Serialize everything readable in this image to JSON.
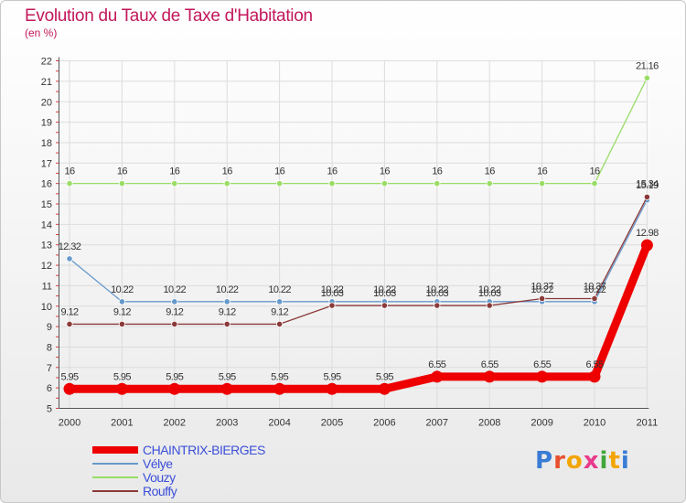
{
  "chart_data": {
    "type": "line",
    "title": "Evolution du Taux de Taxe d'Habitation",
    "subtitle": "(en %)",
    "x": [
      "2000",
      "2001",
      "2002",
      "2003",
      "2004",
      "2005",
      "2006",
      "2007",
      "2008",
      "2009",
      "2010",
      "2011"
    ],
    "ylim": [
      5,
      22
    ],
    "yticks": [
      5,
      6,
      7,
      8,
      9,
      10,
      11,
      12,
      13,
      14,
      15,
      16,
      17,
      18,
      19,
      20,
      21,
      22
    ],
    "grid": true,
    "series": [
      {
        "name": "CHAINTRIX-BIERGES",
        "color": "#ee0000",
        "values": [
          5.95,
          5.95,
          5.95,
          5.95,
          5.95,
          5.95,
          5.95,
          6.55,
          6.55,
          6.55,
          6.55,
          12.98
        ],
        "labels": [
          "5.95",
          "5.95",
          "5.95",
          "5.95",
          "5.95",
          "5.95",
          "5.95",
          "6.55",
          "6.55",
          "6.55",
          "6.55",
          "12.98"
        ]
      },
      {
        "name": "Vélye",
        "color": "#6699cc",
        "values": [
          12.32,
          10.22,
          10.22,
          10.22,
          10.22,
          10.22,
          10.22,
          10.22,
          10.22,
          10.22,
          10.22,
          15.19
        ],
        "labels": [
          "12.32",
          "10.22",
          "10.22",
          "10.22",
          "10.22",
          "10.22",
          "10.22",
          "10.22",
          "10.22",
          "10.22",
          "10.22",
          "15.19"
        ]
      },
      {
        "name": "Vouzy",
        "color": "#99dd66",
        "values": [
          16,
          16,
          16,
          16,
          16,
          16,
          16,
          16,
          16,
          16,
          16,
          21.16
        ],
        "labels": [
          "16",
          "16",
          "16",
          "16",
          "16",
          "16",
          "16",
          "16",
          "16",
          "16",
          "16",
          "21.16"
        ]
      },
      {
        "name": "Rouffy",
        "color": "#8b3a3a",
        "values": [
          9.12,
          9.12,
          9.12,
          9.12,
          9.12,
          10.03,
          10.03,
          10.03,
          10.03,
          10.37,
          10.37,
          15.34
        ],
        "labels": [
          "9.12",
          "9.12",
          "9.12",
          "9.12",
          "9.12",
          "10.03",
          "10.03",
          "10.03",
          "10.03",
          "10.37",
          "10.37",
          "15.34"
        ]
      }
    ]
  },
  "logo": {
    "text": "Proxiti",
    "colors": [
      "#3a7bd5",
      "#e8502f",
      "#f2a500",
      "#e83b8c",
      "#41a63a",
      "#f2a500",
      "#3a7bd5"
    ]
  }
}
